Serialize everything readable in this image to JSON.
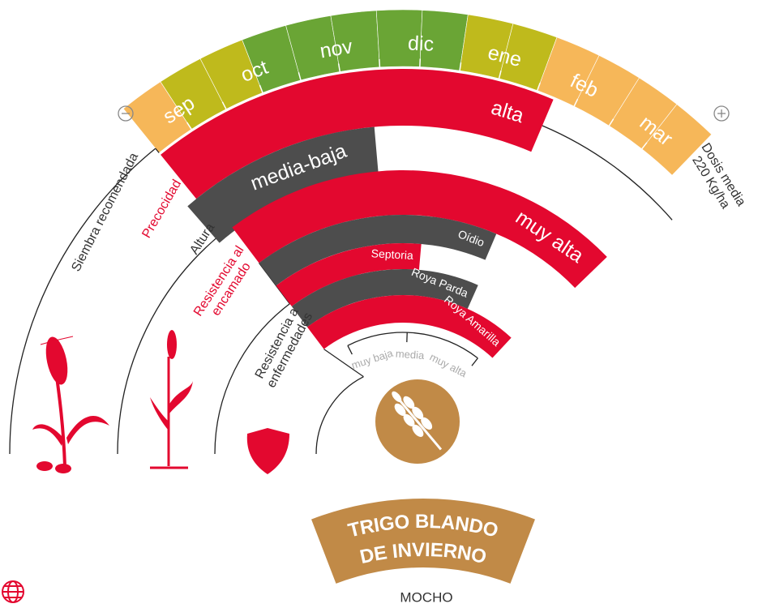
{
  "months": [
    "sep",
    "oct",
    "nov",
    "dic",
    "ene",
    "feb",
    "mar"
  ],
  "labels": {
    "siembra": "Siembra recomendada",
    "precocidad": "Precocidad",
    "altura": "Altura",
    "encamado": [
      "Resistencia al",
      "encamado"
    ],
    "enfermedades": [
      "Resistencia a",
      "enfermedades"
    ]
  },
  "ratings": {
    "precocidad": "alta",
    "altura": "media-baja",
    "encamado": "muy alta"
  },
  "diseases": [
    "Oídio",
    "Septoria",
    "Roya Parda",
    "Roya Amarilla"
  ],
  "scale": [
    "muy baja",
    "media",
    "muy alta"
  ],
  "dose": [
    "Dosis media",
    "220 Kg/ha"
  ],
  "product": {
    "name": [
      "TRIGO BLANDO",
      "DE INVIERNO"
    ],
    "variety": "MOCHO"
  }
}
